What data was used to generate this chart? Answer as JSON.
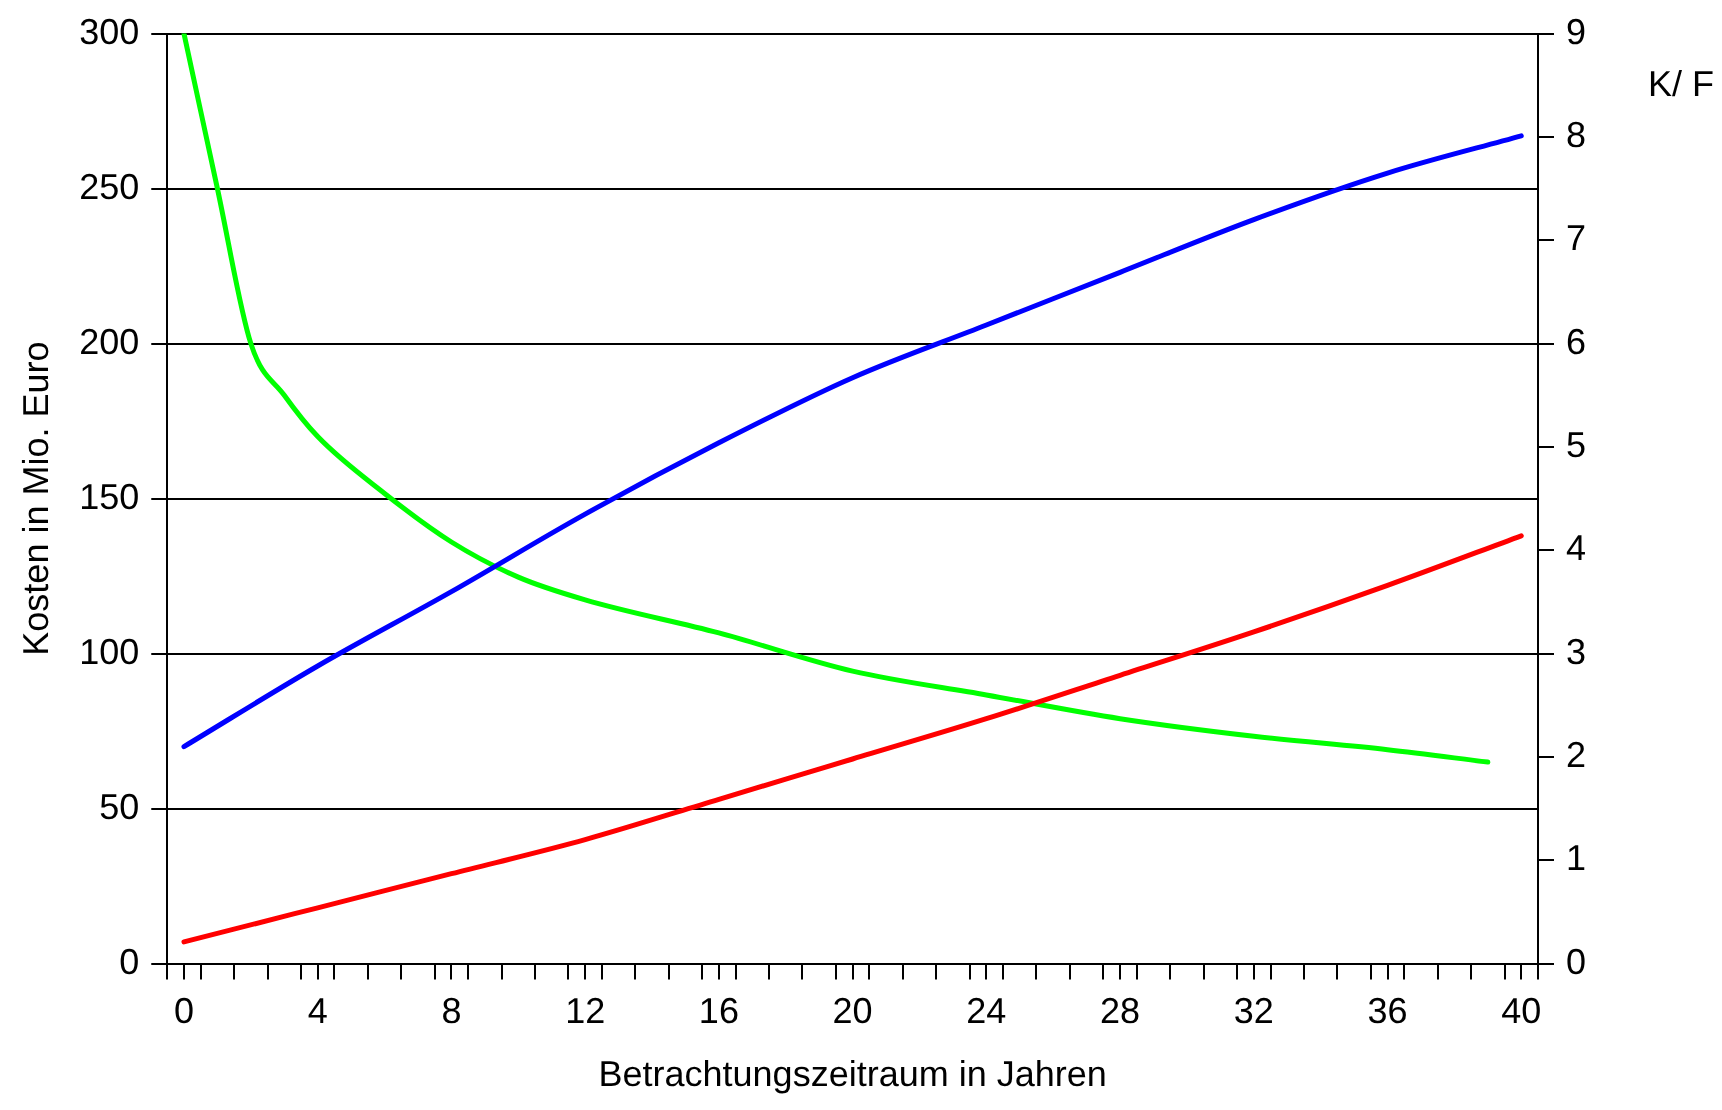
{
  "chart_data": {
    "type": "line",
    "xlabel": "Betrachtungszeitraum in Jahren",
    "ylabel": "Kosten in Mio. Euro",
    "y2label": "K/ F",
    "xlim": [
      -0.5,
      40.5
    ],
    "xticks": [
      0,
      4,
      8,
      12,
      16,
      20,
      24,
      28,
      32,
      36,
      40,
      {
        "value": -0.5,
        "label": null
      },
      {
        "value": 0.5,
        "label": null
      },
      {
        "value": 1.5,
        "label": null
      },
      {
        "value": 2.5,
        "label": null
      },
      {
        "value": 3.5,
        "label": null
      },
      {
        "value": 4.5,
        "label": null
      },
      {
        "value": 5.5,
        "label": null
      },
      {
        "value": 6.5,
        "label": null
      },
      {
        "value": 7.5,
        "label": null
      },
      {
        "value": 8.5,
        "label": null
      },
      {
        "value": 9.5,
        "label": null
      },
      {
        "value": 10.5,
        "label": null
      },
      {
        "value": 11.5,
        "label": null
      },
      {
        "value": 12.5,
        "label": null
      },
      {
        "value": 13.5,
        "label": null
      },
      {
        "value": 14.5,
        "label": null
      },
      {
        "value": 15.5,
        "label": null
      },
      {
        "value": 16.5,
        "label": null
      },
      {
        "value": 17.5,
        "label": null
      },
      {
        "value": 18.5,
        "label": null
      },
      {
        "value": 19.5,
        "label": null
      },
      {
        "value": 20.5,
        "label": null
      },
      {
        "value": 21.5,
        "label": null
      },
      {
        "value": 22.5,
        "label": null
      },
      {
        "value": 23.5,
        "label": null
      },
      {
        "value": 24.5,
        "label": null
      },
      {
        "value": 25.5,
        "label": null
      },
      {
        "value": 26.5,
        "label": null
      },
      {
        "value": 27.5,
        "label": null
      },
      {
        "value": 28.5,
        "label": null
      },
      {
        "value": 29.5,
        "label": null
      },
      {
        "value": 30.5,
        "label": null
      },
      {
        "value": 31.5,
        "label": null
      },
      {
        "value": 32.5,
        "label": null
      },
      {
        "value": 33.5,
        "label": null
      },
      {
        "value": 34.5,
        "label": null
      },
      {
        "value": 35.5,
        "label": null
      },
      {
        "value": 36.5,
        "label": null
      },
      {
        "value": 37.5,
        "label": null
      },
      {
        "value": 38.5,
        "label": null
      },
      {
        "value": 39.5,
        "label": null
      },
      {
        "value": 40.5,
        "label": null
      }
    ],
    "ylim": [
      0,
      300
    ],
    "yticks": [
      0,
      50,
      100,
      150,
      200,
      250,
      300
    ],
    "y2lim": [
      0,
      9
    ],
    "y2ticks": [
      0,
      1,
      2,
      3,
      4,
      5,
      6,
      7,
      8,
      9
    ],
    "grid": "y",
    "legend": false,
    "marker": "none",
    "line_style": "solid",
    "series": [
      {
        "color": "#0000ff",
        "x": [
          0,
          4,
          8,
          12,
          16,
          20,
          24,
          28,
          32,
          36,
          40
        ],
        "values": [
          70,
          96,
          120,
          145,
          168,
          189,
          206,
          223,
          240,
          255,
          267
        ]
      },
      {
        "color": "#ff0000",
        "x": [
          0,
          4,
          8,
          12,
          16,
          20,
          24,
          28,
          32,
          36,
          40
        ],
        "values": [
          7,
          18,
          29,
          40,
          53,
          66,
          79,
          93,
          107,
          122,
          138
        ]
      },
      {
        "color": "#00ff00",
        "axis": "y2",
        "x": [
          0,
          1,
          2,
          3,
          4,
          6,
          8,
          10,
          12,
          16,
          20,
          24,
          28,
          32,
          36,
          39
        ],
        "values": [
          9.0,
          7.5,
          6.0,
          5.5,
          5.1,
          4.55,
          4.08,
          3.74,
          3.52,
          3.2,
          2.83,
          2.6,
          2.37,
          2.2,
          2.07,
          1.95
        ]
      }
    ]
  }
}
